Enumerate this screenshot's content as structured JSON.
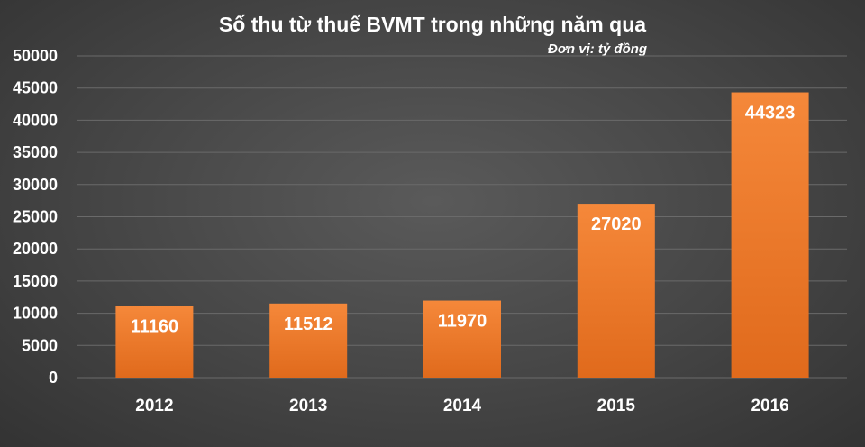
{
  "chart_data": {
    "type": "bar",
    "title": "Số thu từ thuế BVMT trong những năm qua",
    "subtitle": "Đơn vị: tỷ đồng",
    "categories": [
      "2012",
      "2013",
      "2014",
      "2015",
      "2016"
    ],
    "values": [
      11160,
      11512,
      11970,
      27020,
      44323
    ],
    "ylim": [
      0,
      50000
    ],
    "yticks": [
      0,
      5000,
      10000,
      15000,
      20000,
      25000,
      30000,
      35000,
      40000,
      45000,
      50000
    ],
    "xlabel": "",
    "ylabel": "",
    "grid": true,
    "legend": "none",
    "data_labels": true,
    "colors": {
      "bar_top": "#f5883a",
      "bar_bottom": "#e06a1c",
      "background": "#454545",
      "text": "#ffffff"
    }
  }
}
